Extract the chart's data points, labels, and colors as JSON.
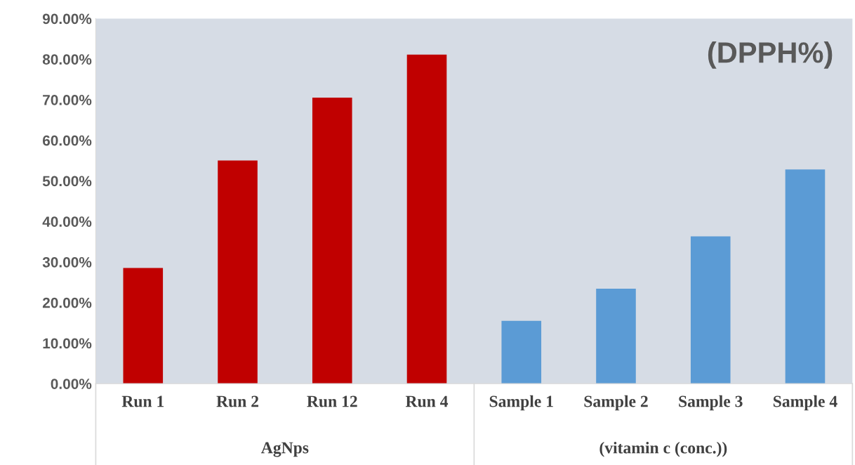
{
  "chart_data": {
    "type": "bar",
    "categories": [
      "Run 1",
      "Run 2",
      "Run 12",
      "Run 4",
      "Sample 1",
      "Sample 2",
      "Sample 3",
      "Sample 4"
    ],
    "series": [
      {
        "color": "#c00000",
        "values": [
          28.5,
          55.0,
          70.5,
          81.1,
          null,
          null,
          null,
          null
        ]
      },
      {
        "color": "#5b9bd5",
        "values": [
          null,
          null,
          null,
          null,
          15.5,
          23.4,
          36.3,
          52.8
        ]
      }
    ],
    "ylim": [
      0,
      90
    ],
    "yticks": [
      {
        "value": 0,
        "label": "0.00%"
      },
      {
        "value": 10,
        "label": "10.00%"
      },
      {
        "value": 20,
        "label": "20.00%"
      },
      {
        "value": 30,
        "label": "30.00%"
      },
      {
        "value": 40,
        "label": "40.00%"
      },
      {
        "value": 50,
        "label": "50.00%"
      },
      {
        "value": 60,
        "label": "60.00%"
      },
      {
        "value": 70,
        "label": "70.00%"
      },
      {
        "value": 80,
        "label": "80.00%"
      },
      {
        "value": 90,
        "label": "90.00%"
      }
    ],
    "annotations": [
      "(DPPH%)",
      "AgNps",
      "(vitamin c (conc.))"
    ],
    "grid": false,
    "legend": false
  }
}
